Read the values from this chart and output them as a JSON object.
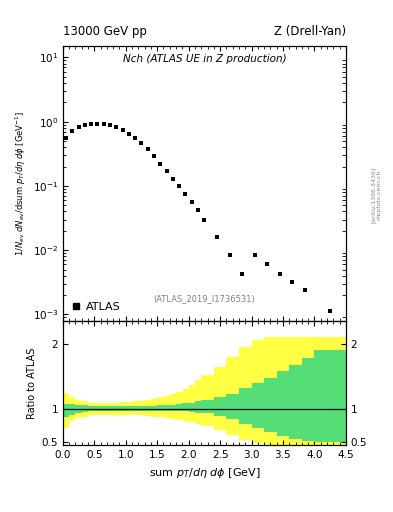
{
  "title_left": "13000 GeV pp",
  "title_right": "Z (Drell-Yan)",
  "plot_title": "Nch (ATLAS UE in Z production)",
  "ylabel_main": "1/N_{ev} dN_{ev}/dsum p_{T}/d#eta d#phi  [GeV^{-1}]",
  "ylabel_ratio": "Ratio to ATLAS",
  "xlabel": "sum p_{T}/d#eta d#phi [GeV]",
  "annotation": "(ATLAS_2019_I1736531)",
  "arxiv_text": "[arXiv:1306.3436]",
  "mcplots_text": "mcplots.cern.ch",
  "data_x": [
    0.05,
    0.15,
    0.25,
    0.35,
    0.45,
    0.55,
    0.65,
    0.75,
    0.85,
    0.95,
    1.05,
    1.15,
    1.25,
    1.35,
    1.45,
    1.55,
    1.65,
    1.75,
    1.85,
    1.95,
    2.05,
    2.15,
    2.25,
    2.45,
    2.65,
    2.85,
    3.05,
    3.25,
    3.45,
    3.65,
    3.85,
    4.25
  ],
  "data_y": [
    0.55,
    0.72,
    0.82,
    0.88,
    0.92,
    0.93,
    0.92,
    0.88,
    0.82,
    0.74,
    0.65,
    0.55,
    0.46,
    0.37,
    0.29,
    0.22,
    0.17,
    0.13,
    0.1,
    0.075,
    0.057,
    0.042,
    0.03,
    0.016,
    0.0085,
    0.0042,
    0.0085,
    0.006,
    0.0042,
    0.0032,
    0.0024,
    0.00115
  ],
  "xlim": [
    0,
    4.5
  ],
  "ylim_main": [
    0.0008,
    15
  ],
  "ylim_ratio": [
    0.45,
    2.35
  ],
  "ratio_x_edges": [
    0.0,
    0.1,
    0.2,
    0.3,
    0.4,
    0.5,
    0.6,
    0.7,
    0.8,
    0.9,
    1.0,
    1.1,
    1.2,
    1.3,
    1.4,
    1.5,
    1.6,
    1.7,
    1.8,
    1.9,
    2.0,
    2.1,
    2.2,
    2.4,
    2.6,
    2.8,
    3.0,
    3.2,
    3.4,
    3.6,
    3.8,
    4.0,
    4.5
  ],
  "ratio_green_low": [
    0.88,
    0.92,
    0.95,
    0.96,
    0.97,
    0.97,
    0.97,
    0.97,
    0.97,
    0.97,
    0.97,
    0.97,
    0.97,
    0.97,
    0.97,
    0.97,
    0.97,
    0.97,
    0.97,
    0.97,
    0.96,
    0.95,
    0.94,
    0.9,
    0.85,
    0.78,
    0.72,
    0.65,
    0.6,
    0.55,
    0.52,
    0.5,
    0.5
  ],
  "ratio_green_high": [
    1.08,
    1.08,
    1.07,
    1.06,
    1.05,
    1.05,
    1.05,
    1.05,
    1.05,
    1.05,
    1.05,
    1.05,
    1.05,
    1.05,
    1.05,
    1.06,
    1.06,
    1.07,
    1.08,
    1.09,
    1.1,
    1.12,
    1.14,
    1.18,
    1.24,
    1.32,
    1.4,
    1.48,
    1.58,
    1.68,
    1.78,
    1.9,
    2.0
  ],
  "ratio_yellow_low": [
    0.72,
    0.82,
    0.87,
    0.89,
    0.91,
    0.91,
    0.91,
    0.91,
    0.91,
    0.91,
    0.91,
    0.91,
    0.91,
    0.9,
    0.89,
    0.88,
    0.87,
    0.86,
    0.84,
    0.82,
    0.8,
    0.77,
    0.74,
    0.68,
    0.61,
    0.54,
    0.48,
    0.44,
    0.43,
    0.43,
    0.44,
    0.46,
    0.46
  ],
  "ratio_yellow_high": [
    1.25,
    1.18,
    1.14,
    1.12,
    1.1,
    1.1,
    1.1,
    1.1,
    1.1,
    1.11,
    1.11,
    1.12,
    1.13,
    1.14,
    1.16,
    1.18,
    1.2,
    1.23,
    1.27,
    1.31,
    1.37,
    1.44,
    1.52,
    1.65,
    1.8,
    1.95,
    2.05,
    2.1,
    2.1,
    2.1,
    2.1,
    2.1,
    2.1
  ]
}
